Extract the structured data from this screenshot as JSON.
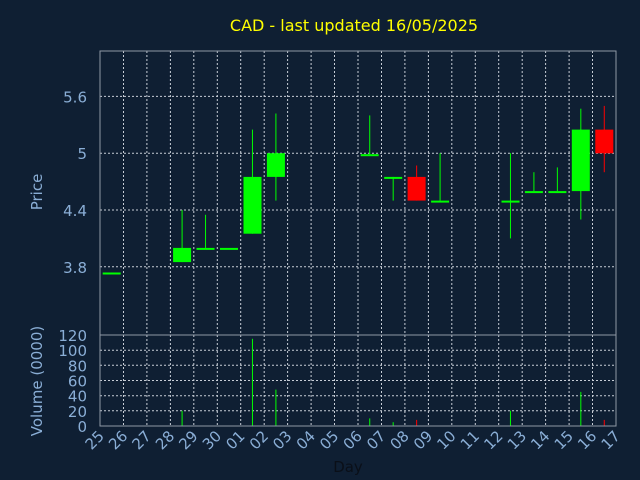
{
  "chart_data": {
    "type": "candlestick",
    "title": "CAD - last updated 16/05/2025",
    "price_axis": {
      "label": "Price",
      "ticks": [
        "3.8",
        "4.4",
        "5",
        "5.6"
      ],
      "range": [
        3.08,
        6.08
      ]
    },
    "volume_axis": {
      "label": "Volume (0000)",
      "ticks": [
        "0",
        "20",
        "40",
        "60",
        "80",
        "100",
        "120"
      ],
      "range": [
        0,
        120
      ]
    },
    "x_axis": {
      "label": "Day",
      "tick_labels": [
        "25",
        "26",
        "27",
        "28",
        "29",
        "30",
        "01",
        "02",
        "03",
        "04",
        "05",
        "06",
        "07",
        "08",
        "09",
        "10",
        "11",
        "12",
        "13",
        "14",
        "15",
        "16",
        "17"
      ]
    },
    "grid": true,
    "up_color": "#00ff00",
    "down_color": "#ff0000",
    "candles": [
      {
        "day": "25",
        "open": 3.74,
        "high": 3.74,
        "low": 3.74,
        "close": 3.74,
        "volume": 0
      },
      {
        "day": "28",
        "open": 3.85,
        "high": 4.4,
        "low": 3.85,
        "close": 4.0,
        "volume": 20
      },
      {
        "day": "29",
        "open": 4.0,
        "high": 4.35,
        "low": 4.0,
        "close": 4.0,
        "volume": 0
      },
      {
        "day": "30",
        "open": 4.0,
        "high": 4.0,
        "low": 4.0,
        "close": 4.0,
        "volume": 0
      },
      {
        "day": "01",
        "open": 4.15,
        "high": 5.25,
        "low": 4.15,
        "close": 4.75,
        "volume": 115
      },
      {
        "day": "02",
        "open": 4.75,
        "high": 5.42,
        "low": 4.5,
        "close": 5.0,
        "volume": 48
      },
      {
        "day": "06",
        "open": 4.99,
        "high": 5.4,
        "low": 4.99,
        "close": 4.99,
        "volume": 10
      },
      {
        "day": "07",
        "open": 4.75,
        "high": 4.75,
        "low": 4.5,
        "close": 4.75,
        "volume": 5
      },
      {
        "day": "08",
        "open": 4.75,
        "high": 4.87,
        "low": 4.5,
        "close": 4.5,
        "volume": 8
      },
      {
        "day": "09",
        "open": 4.5,
        "high": 5.0,
        "low": 4.5,
        "close": 4.5,
        "volume": 0
      },
      {
        "day": "12",
        "open": 4.5,
        "high": 5.0,
        "low": 4.1,
        "close": 4.5,
        "volume": 20
      },
      {
        "day": "13",
        "open": 4.6,
        "high": 4.8,
        "low": 4.6,
        "close": 4.6,
        "volume": 0
      },
      {
        "day": "14",
        "open": 4.6,
        "high": 4.85,
        "low": 4.6,
        "close": 4.6,
        "volume": 0
      },
      {
        "day": "15",
        "open": 4.6,
        "high": 5.47,
        "low": 4.3,
        "close": 5.25,
        "volume": 45
      },
      {
        "day": "16",
        "open": 5.25,
        "high": 5.5,
        "low": 4.8,
        "close": 5.0,
        "volume": 8
      }
    ]
  }
}
